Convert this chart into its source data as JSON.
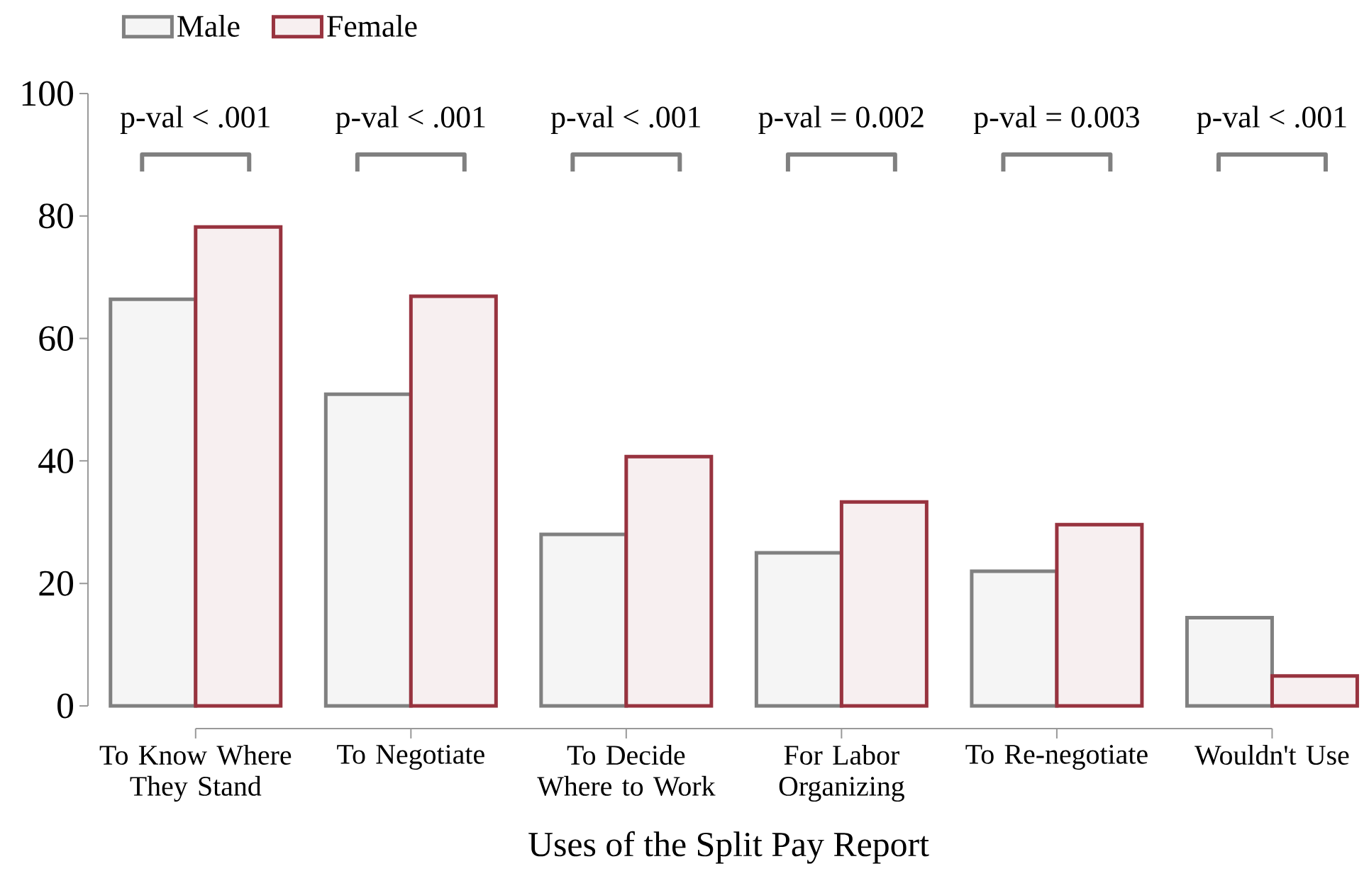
{
  "chart_data": {
    "type": "bar",
    "xlabel": "Uses of the Split Pay Report",
    "categories": [
      "To Know Where They Stand",
      "To Negotiate",
      "To Decide Where to Work",
      "For Labor Organizing",
      "To Re-negotiate",
      "Wouldn't Use"
    ],
    "series": [
      {
        "name": "Male",
        "color": "#808080",
        "values": [
          66.4,
          50.9,
          28,
          25,
          22,
          14.4
        ]
      },
      {
        "name": "Female",
        "color": "#98333f",
        "values": [
          78.2,
          66.9,
          40.7,
          33.3,
          29.6,
          4.9
        ]
      }
    ],
    "ylim": [
      0,
      100
    ],
    "yticks": [
      0,
      20,
      40,
      60,
      80,
      100
    ],
    "grid": false,
    "legend": "top left",
    "annotations": [
      "p-val < .001",
      "p-val < .001",
      "p-val < .001",
      "p-val = 0.002",
      "p-val = 0.003",
      "p-val < .001"
    ]
  }
}
